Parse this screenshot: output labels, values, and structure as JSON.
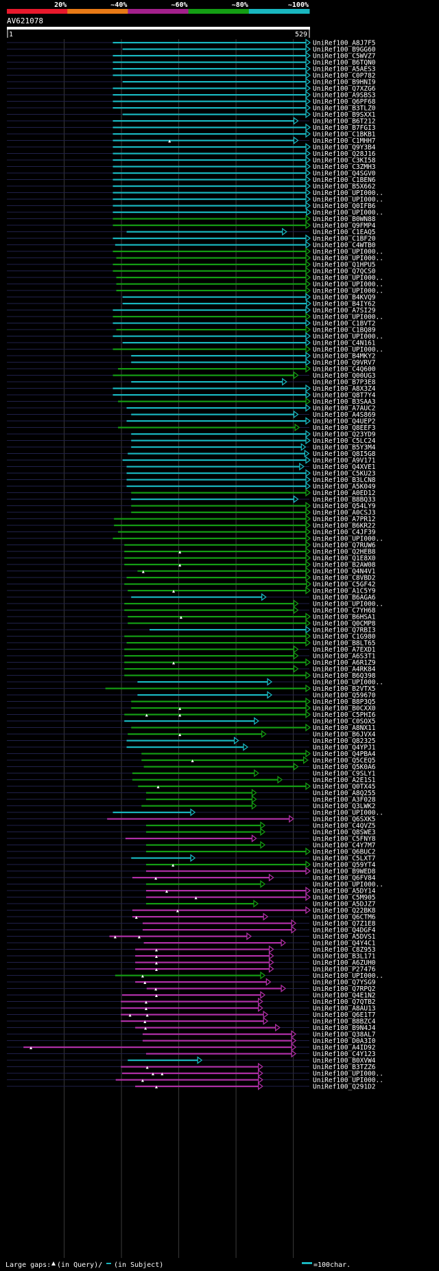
{
  "chart_data": {
    "type": "alignment-overview",
    "title": "AV621078",
    "query_range": [
      1,
      529
    ],
    "query_start_label": "1",
    "query_end_label": "529",
    "identity_scale": [
      {
        "label": "20%",
        "color": "#e8192c"
      },
      {
        "label": "~40%",
        "color": "#e87a16"
      },
      {
        "label": "~60%",
        "color": "#a3208c"
      },
      {
        "label": "~80%",
        "color": "#149e14"
      },
      {
        "label": "~100%",
        "color": "#19b7c0"
      }
    ],
    "series_colors": {
      "c": "#19b7c0",
      "g": "#149e14",
      "m": "#b030a8"
    },
    "legend": {
      "large_gaps_text": "Large gaps:",
      "query_gap_text": "(in Query)/",
      "subject_gap_text": "(in Subject)",
      "scale_text": "=100char."
    },
    "hits": [
      {
        "id": "UniRef100_A8J7F5",
        "s": 186,
        "e": 529,
        "c": "c"
      },
      {
        "id": "UniRef100_B9GG60",
        "s": 203,
        "e": 529,
        "c": "c"
      },
      {
        "id": "UniRef100_C5WVZ7",
        "s": 186,
        "e": 529,
        "c": "c"
      },
      {
        "id": "UniRef100_B6TQN0",
        "s": 186,
        "e": 529,
        "c": "c"
      },
      {
        "id": "UniRef100_A5AES3",
        "s": 186,
        "e": 529,
        "c": "c"
      },
      {
        "id": "UniRef100_C0P782",
        "s": 186,
        "e": 529,
        "c": "c"
      },
      {
        "id": "UniRef100_B9HNI9",
        "s": 203,
        "e": 529,
        "c": "c"
      },
      {
        "id": "UniRef100_Q7XZG6",
        "s": 186,
        "e": 529,
        "c": "c"
      },
      {
        "id": "UniRef100_A9SBS3",
        "s": 186,
        "e": 529,
        "c": "c"
      },
      {
        "id": "UniRef100_Q6PF68",
        "s": 186,
        "e": 529,
        "c": "c"
      },
      {
        "id": "UniRef100_B3TLZ0",
        "s": 186,
        "e": 529,
        "c": "c"
      },
      {
        "id": "UniRef100_B9SXX1",
        "s": 203,
        "e": 529,
        "c": "c"
      },
      {
        "id": "UniRef100_B6T212",
        "s": 186,
        "e": 508,
        "c": "c"
      },
      {
        "id": "UniRef100_B7FGI3",
        "s": 186,
        "e": 529,
        "c": "c"
      },
      {
        "id": "UniRef100_C1BKB1",
        "s": 186,
        "e": 529,
        "c": "c"
      },
      {
        "id": "UniRef100_C1MHH7",
        "s": 186,
        "e": 508,
        "c": "c",
        "gq": [
          285
        ]
      },
      {
        "id": "UniRef100_Q9Y3B4",
        "s": 186,
        "e": 529,
        "c": "c"
      },
      {
        "id": "UniRef100_Q28J16",
        "s": 186,
        "e": 529,
        "c": "c"
      },
      {
        "id": "UniRef100_C3KI58",
        "s": 186,
        "e": 529,
        "c": "c"
      },
      {
        "id": "UniRef100_C3ZMH3",
        "s": 186,
        "e": 529,
        "c": "c"
      },
      {
        "id": "UniRef100_Q4SGV0",
        "s": 186,
        "e": 529,
        "c": "c"
      },
      {
        "id": "UniRef100_C1BEN6",
        "s": 186,
        "e": 529,
        "c": "c"
      },
      {
        "id": "UniRef100_B5X662",
        "s": 186,
        "e": 529,
        "c": "c"
      },
      {
        "id": "UniRef100_UPI000..",
        "s": 186,
        "e": 529,
        "c": "c"
      },
      {
        "id": "UniRef100_UPI000..",
        "s": 186,
        "e": 529,
        "c": "c"
      },
      {
        "id": "UniRef100_Q0IFB6",
        "s": 186,
        "e": 529,
        "c": "c"
      },
      {
        "id": "UniRef100_UPI000..",
        "s": 186,
        "e": 530,
        "c": "c"
      },
      {
        "id": "UniRef100_B0WN88",
        "s": 186,
        "e": 529,
        "c": "g"
      },
      {
        "id": "UniRef100_Q9FMP4",
        "s": 186,
        "e": 529,
        "c": "g"
      },
      {
        "id": "UniRef100_C1EAQ5",
        "s": 210,
        "e": 488,
        "c": "c"
      },
      {
        "id": "UniRef100_C1BF20",
        "s": 186,
        "e": 529,
        "c": "c"
      },
      {
        "id": "UniRef100_C4WTB0",
        "s": 190,
        "e": 529,
        "c": "c"
      },
      {
        "id": "UniRef100_UPI000..",
        "s": 186,
        "e": 529,
        "c": "g"
      },
      {
        "id": "UniRef100_UPI000..",
        "s": 192,
        "e": 529,
        "c": "g"
      },
      {
        "id": "UniRef100_Q1HPU5",
        "s": 186,
        "e": 529,
        "c": "g"
      },
      {
        "id": "UniRef100_Q7QCS0",
        "s": 186,
        "e": 529,
        "c": "g"
      },
      {
        "id": "UniRef100_UPI000..",
        "s": 192,
        "e": 529,
        "c": "g"
      },
      {
        "id": "UniRef100_UPI000..",
        "s": 192,
        "e": 529,
        "c": "g"
      },
      {
        "id": "UniRef100_UPI000..",
        "s": 192,
        "e": 529,
        "c": "g"
      },
      {
        "id": "UniRef100_B4KVQ9",
        "s": 203,
        "e": 529,
        "c": "c"
      },
      {
        "id": "UniRef100_B4IY62",
        "s": 203,
        "e": 530,
        "c": "c"
      },
      {
        "id": "UniRef100_A7SI29",
        "s": 186,
        "e": 529,
        "c": "c"
      },
      {
        "id": "UniRef100_UPI000..",
        "s": 186,
        "e": 529,
        "c": "g"
      },
      {
        "id": "UniRef100_C1BVT2",
        "s": 186,
        "e": 529,
        "c": "c"
      },
      {
        "id": "UniRef100_C1BQ89",
        "s": 192,
        "e": 529,
        "c": "g"
      },
      {
        "id": "UniRef100_UPI000..",
        "s": 186,
        "e": 529,
        "c": "c"
      },
      {
        "id": "UniRef100_C4N161",
        "s": 203,
        "e": 529,
        "c": "c"
      },
      {
        "id": "UniRef100_UPI000..",
        "s": 186,
        "e": 529,
        "c": "g"
      },
      {
        "id": "UniRef100_B4MKY2",
        "s": 218,
        "e": 529,
        "c": "c"
      },
      {
        "id": "UniRef100_Q9VRV7",
        "s": 218,
        "e": 529,
        "c": "c"
      },
      {
        "id": "UniRef100_C4Q600",
        "s": 195,
        "e": 529,
        "c": "g"
      },
      {
        "id": "UniRef100_Q00UG3",
        "s": 186,
        "e": 508,
        "c": "g"
      },
      {
        "id": "UniRef100_B7P3E8",
        "s": 218,
        "e": 488,
        "c": "c"
      },
      {
        "id": "UniRef100_A8X3Z4",
        "s": 186,
        "e": 529,
        "c": "c"
      },
      {
        "id": "UniRef100_Q8T7Y4",
        "s": 186,
        "e": 529,
        "c": "c"
      },
      {
        "id": "UniRef100_B3SAA3",
        "s": 195,
        "e": 529,
        "c": "g"
      },
      {
        "id": "UniRef100_A7AUC2",
        "s": 210,
        "e": 529,
        "c": "c"
      },
      {
        "id": "UniRef100_A4S869",
        "s": 218,
        "e": 508,
        "c": "c"
      },
      {
        "id": "UniRef100_Q4UEP2",
        "s": 210,
        "e": 529,
        "c": "c"
      },
      {
        "id": "UniRef100_Q8EEF3",
        "s": 195,
        "e": 510,
        "c": "g"
      },
      {
        "id": "UniRef100_Q23YD9",
        "s": 218,
        "e": 529,
        "c": "c"
      },
      {
        "id": "UniRef100_C5LC24",
        "s": 218,
        "e": 529,
        "c": "c"
      },
      {
        "id": "UniRef100_B5Y3M4",
        "s": 218,
        "e": 521,
        "c": "c"
      },
      {
        "id": "UniRef100_Q8I5G8",
        "s": 212,
        "e": 527,
        "c": "c"
      },
      {
        "id": "UniRef100_A9V171",
        "s": 203,
        "e": 529,
        "c": "c"
      },
      {
        "id": "UniRef100_Q4XVE1",
        "s": 210,
        "e": 518,
        "c": "c"
      },
      {
        "id": "UniRef100_C5KU23",
        "s": 210,
        "e": 529,
        "c": "c"
      },
      {
        "id": "UniRef100_B3LCN8",
        "s": 210,
        "e": 529,
        "c": "c"
      },
      {
        "id": "UniRef100_A5K049",
        "s": 210,
        "e": 529,
        "c": "c"
      },
      {
        "id": "UniRef100_A0ED12",
        "s": 218,
        "e": 529,
        "c": "g"
      },
      {
        "id": "UniRef100_B8BQ33",
        "s": 218,
        "e": 508,
        "c": "c"
      },
      {
        "id": "UniRef100_Q54LY9",
        "s": 218,
        "e": 529,
        "c": "g"
      },
      {
        "id": "UniRef100_A0CSJ3",
        "s": 218,
        "e": 529,
        "c": "g"
      },
      {
        "id": "UniRef100_A7PR12",
        "s": 188,
        "e": 529,
        "c": "g"
      },
      {
        "id": "UniRef100_B6KR22",
        "s": 188,
        "e": 529,
        "c": "g"
      },
      {
        "id": "UniRef100_C4JF39",
        "s": 195,
        "e": 529,
        "c": "g"
      },
      {
        "id": "UniRef100_UPI000..",
        "s": 186,
        "e": 529,
        "c": "g"
      },
      {
        "id": "UniRef100_Q7RUW6",
        "s": 206,
        "e": 529,
        "c": "g"
      },
      {
        "id": "UniRef100_Q2HEB8",
        "s": 206,
        "e": 529,
        "c": "g",
        "gq": [
          303
        ]
      },
      {
        "id": "UniRef100_Q1E8X0",
        "s": 206,
        "e": 529,
        "c": "g"
      },
      {
        "id": "UniRef100_B2AW08",
        "s": 206,
        "e": 529,
        "c": "g",
        "gq": [
          303
        ]
      },
      {
        "id": "UniRef100_Q4N4V1",
        "s": 229,
        "e": 529,
        "c": "g",
        "gq": [
          239
        ]
      },
      {
        "id": "UniRef100_C8VBD2",
        "s": 210,
        "e": 529,
        "c": "g"
      },
      {
        "id": "UniRef100_C5GF42",
        "s": 206,
        "e": 530,
        "c": "g"
      },
      {
        "id": "UniRef100_A1C5Y9",
        "s": 212,
        "e": 529,
        "c": "g",
        "gq": [
          292
        ]
      },
      {
        "id": "UniRef100_B6AGA6",
        "s": 218,
        "e": 452,
        "c": "c"
      },
      {
        "id": "UniRef100_UPI000..",
        "s": 206,
        "e": 508,
        "c": "g"
      },
      {
        "id": "UniRef100_C7YH68",
        "s": 206,
        "e": 508,
        "c": "g"
      },
      {
        "id": "UniRef100_B6HSA1",
        "s": 212,
        "e": 529,
        "c": "g",
        "gq": [
          305
        ]
      },
      {
        "id": "UniRef100_Q0CMP8",
        "s": 212,
        "e": 529,
        "c": "g"
      },
      {
        "id": "UniRef100_Q7RBI3",
        "s": 250,
        "e": 529,
        "c": "c"
      },
      {
        "id": "UniRef100_C1G980",
        "s": 206,
        "e": 529,
        "c": "g"
      },
      {
        "id": "UniRef100_B8LT65",
        "s": 210,
        "e": 529,
        "c": "g"
      },
      {
        "id": "UniRef100_A7EXD1",
        "s": 206,
        "e": 508,
        "c": "g"
      },
      {
        "id": "UniRef100_A6S3T1",
        "s": 206,
        "e": 508,
        "c": "g"
      },
      {
        "id": "UniRef100_A6R1Z9",
        "s": 206,
        "e": 529,
        "c": "g",
        "gq": [
          292
        ]
      },
      {
        "id": "UniRef100_A4RK84",
        "s": 206,
        "e": 508,
        "c": "g"
      },
      {
        "id": "UniRef100_B6Q398",
        "s": 206,
        "e": 529,
        "c": "g"
      },
      {
        "id": "UniRef100_UPI000..",
        "s": 229,
        "e": 462,
        "c": "c"
      },
      {
        "id": "UniRef100_B2VTX5",
        "s": 173,
        "e": 529,
        "c": "g"
      },
      {
        "id": "UniRef100_Q59670",
        "s": 229,
        "e": 462,
        "c": "c"
      },
      {
        "id": "UniRef100_B8P3Q5",
        "s": 218,
        "e": 529,
        "c": "g"
      },
      {
        "id": "UniRef100_B0CXX0",
        "s": 218,
        "e": 529,
        "c": "g",
        "gq": [
          303
        ]
      },
      {
        "id": "UniRef100_C5PHI6",
        "s": 206,
        "e": 529,
        "c": "g",
        "gq": [
          245,
          303
        ]
      },
      {
        "id": "UniRef100_C0SOX5",
        "s": 206,
        "e": 439,
        "c": "c"
      },
      {
        "id": "UniRef100_A8NX11",
        "s": 218,
        "e": 529,
        "c": "g"
      },
      {
        "id": "UniRef100_B6JVX4",
        "s": 212,
        "e": 452,
        "c": "g",
        "gq": [
          303
        ]
      },
      {
        "id": "UniRef100_Q82325",
        "s": 210,
        "e": 404,
        "c": "c"
      },
      {
        "id": "UniRef100_Q4YPJ1",
        "s": 210,
        "e": 420,
        "c": "c"
      },
      {
        "id": "UniRef100_Q4PBA4",
        "s": 236,
        "e": 529,
        "c": "g"
      },
      {
        "id": "UniRef100_Q5CEQ5",
        "s": 236,
        "e": 525,
        "c": "g",
        "gq": [
          325
        ]
      },
      {
        "id": "UniRef100_Q5K0A6",
        "s": 240,
        "e": 508,
        "c": "g"
      },
      {
        "id": "UniRef100_C9SLY1",
        "s": 220,
        "e": 439,
        "c": "g"
      },
      {
        "id": "UniRef100_A2E1S1",
        "s": 220,
        "e": 480,
        "c": "g"
      },
      {
        "id": "UniRef100_Q0TX45",
        "s": 230,
        "e": 529,
        "c": "g",
        "gq": [
          265
        ]
      },
      {
        "id": "UniRef100_A8Q255",
        "s": 244,
        "e": 435,
        "c": "g"
      },
      {
        "id": "UniRef100_A3F028",
        "s": 244,
        "e": 435,
        "c": "g"
      },
      {
        "id": "UniRef100_Q3LWK2",
        "s": 236,
        "e": 435,
        "c": "g"
      },
      {
        "id": "UniRef100_UPI000..",
        "s": 186,
        "e": 328,
        "c": "c"
      },
      {
        "id": "UniRef100_Q6SXK5",
        "s": 176,
        "e": 500,
        "c": "m"
      },
      {
        "id": "UniRef100_C4QVZ5",
        "s": 244,
        "e": 450,
        "c": "g"
      },
      {
        "id": "UniRef100_Q8SWE3",
        "s": 244,
        "e": 450,
        "c": "g"
      },
      {
        "id": "UniRef100_C5FNY8",
        "s": 208,
        "e": 435,
        "c": "m"
      },
      {
        "id": "UniRef100_C4Y7M7",
        "s": 244,
        "e": 450,
        "c": "g"
      },
      {
        "id": "UniRef100_Q6BUC2",
        "s": 244,
        "e": 529,
        "c": "g"
      },
      {
        "id": "UniRef100_C5LXT7",
        "s": 218,
        "e": 328,
        "c": "c"
      },
      {
        "id": "UniRef100_Q59YT4",
        "s": 244,
        "e": 529,
        "c": "g",
        "gq": [
          291
        ]
      },
      {
        "id": "UniRef100_B9WED8",
        "s": 244,
        "e": 529,
        "c": "m"
      },
      {
        "id": "UniRef100_Q6FV84",
        "s": 220,
        "e": 465,
        "c": "m",
        "gq": [
          261
        ]
      },
      {
        "id": "UniRef100_UPI000..",
        "s": 244,
        "e": 450,
        "c": "g"
      },
      {
        "id": "UniRef100_A5DY14",
        "s": 244,
        "e": 529,
        "c": "m",
        "gq": [
          280
        ]
      },
      {
        "id": "UniRef100_C5M905",
        "s": 244,
        "e": 529,
        "c": "m",
        "gq": [
          331
        ]
      },
      {
        "id": "UniRef100_A5DJZ7",
        "s": 244,
        "e": 438,
        "c": "g"
      },
      {
        "id": "UniRef100_Q22BK8",
        "s": 220,
        "e": 529,
        "c": "m",
        "gq": [
          299
        ]
      },
      {
        "id": "UniRef100_Q6CTM6",
        "s": 220,
        "e": 455,
        "c": "m",
        "gq": [
          227
        ]
      },
      {
        "id": "UniRef100_Q7Z1E8",
        "s": 238,
        "e": 504,
        "c": "m"
      },
      {
        "id": "UniRef100_Q4DGF4",
        "s": 238,
        "e": 504,
        "c": "m"
      },
      {
        "id": "UniRef100_A5DVS1",
        "s": 180,
        "e": 426,
        "c": "m",
        "gq": [
          190,
          232
        ]
      },
      {
        "id": "UniRef100_Q4Y4C1",
        "s": 240,
        "e": 486,
        "c": "m"
      },
      {
        "id": "UniRef100_C8Z953",
        "s": 225,
        "e": 465,
        "c": "m",
        "gq": [
          262
        ]
      },
      {
        "id": "UniRef100_B3L171",
        "s": 225,
        "e": 465,
        "c": "m",
        "gq": [
          262
        ]
      },
      {
        "id": "UniRef100_A6ZUH0",
        "s": 225,
        "e": 465,
        "c": "m",
        "gq": [
          262
        ]
      },
      {
        "id": "UniRef100_P27476",
        "s": 225,
        "e": 465,
        "c": "m",
        "gq": [
          262
        ]
      },
      {
        "id": "UniRef100_UPI000..",
        "s": 190,
        "e": 450,
        "c": "g",
        "gq": [
          238
        ]
      },
      {
        "id": "UniRef100_Q7YSG9",
        "s": 225,
        "e": 460,
        "c": "m",
        "gq": [
          242
        ]
      },
      {
        "id": "UniRef100_Q7RPQ2",
        "s": 245,
        "e": 486,
        "c": "m",
        "gq": [
          261
        ]
      },
      {
        "id": "UniRef100_Q4E1N2",
        "s": 202,
        "e": 450,
        "c": "m",
        "gq": [
          262
        ]
      },
      {
        "id": "UniRef100_Q7QTB2",
        "s": 200,
        "e": 446,
        "c": "m",
        "gq": [
          244
        ]
      },
      {
        "id": "UniRef100_A8AU13",
        "s": 200,
        "e": 446,
        "c": "m",
        "gq": [
          244
        ]
      },
      {
        "id": "UniRef100_Q6E1T7",
        "s": 200,
        "e": 455,
        "c": "m",
        "gq": [
          216,
          246
        ]
      },
      {
        "id": "UniRef100_B8BZC4",
        "s": 200,
        "e": 455,
        "c": "m",
        "gq": [
          242
        ]
      },
      {
        "id": "UniRef100_B9N4J4",
        "s": 225,
        "e": 476,
        "c": "m",
        "gq": [
          243
        ]
      },
      {
        "id": "UniRef100_Q38AL7",
        "s": 238,
        "e": 504,
        "c": "m"
      },
      {
        "id": "UniRef100_D0A3I0",
        "s": 238,
        "e": 504,
        "c": "m"
      },
      {
        "id": "UniRef100_A4ID92",
        "s": 30,
        "e": 504,
        "c": "m",
        "gq": [
          43
        ]
      },
      {
        "id": "UniRef100_C4Y123",
        "s": 244,
        "e": 504,
        "c": "m"
      },
      {
        "id": "UniRef100_B0XVW4",
        "s": 212,
        "e": 340,
        "c": "c"
      },
      {
        "id": "UniRef100_B3TZZ6",
        "s": 200,
        "e": 446,
        "c": "m",
        "gq": [
          246
        ]
      },
      {
        "id": "UniRef100_UPI000..",
        "s": 202,
        "e": 446,
        "c": "m",
        "gq": [
          256,
          272
        ]
      },
      {
        "id": "UniRef100_UPI000..",
        "s": 191,
        "e": 446,
        "c": "m",
        "gq": [
          238
        ]
      },
      {
        "id": "UniRef100_Q291D2",
        "s": 225,
        "e": 446,
        "c": "m",
        "gq": [
          262
        ]
      }
    ]
  }
}
